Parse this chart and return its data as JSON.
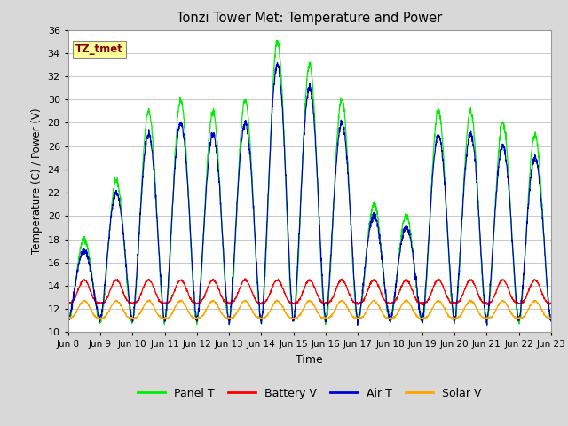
{
  "title": "Tonzi Tower Met: Temperature and Power",
  "xlabel": "Time",
  "ylabel": "Temperature (C) / Power (V)",
  "ylim": [
    10,
    36
  ],
  "yticks": [
    10,
    12,
    14,
    16,
    18,
    20,
    22,
    24,
    26,
    28,
    30,
    32,
    34,
    36
  ],
  "xtick_labels": [
    "Jun 8",
    "Jun 9",
    "Jun 10",
    "Jun 11",
    "Jun 12",
    "Jun 13",
    "Jun 14",
    "Jun 15",
    "Jun 16",
    "Jun 17",
    "Jun 18",
    "Jun 19",
    "Jun 20",
    "Jun 21",
    "Jun 22",
    "Jun 23"
  ],
  "annotation_text": "TZ_tmet",
  "annotation_box_color": "#FFFF99",
  "annotation_text_color": "#8B0000",
  "fig_bg_color": "#D8D8D8",
  "plot_bg_color": "#FFFFFF",
  "grid_color": "#C8C8C8",
  "line_colors": {
    "panel_t": "#00EE00",
    "battery_v": "#FF0000",
    "air_t": "#0000CC",
    "solar_v": "#FFA500"
  },
  "n_days": 15,
  "samples_per_day": 144,
  "amp_panel": [
    7,
    12,
    18,
    19,
    18,
    19,
    24,
    22,
    19,
    10,
    9,
    18,
    18,
    17,
    16
  ],
  "amp_air": [
    6,
    11,
    16,
    17,
    16,
    17,
    22,
    20,
    17,
    9,
    8,
    16,
    16,
    15,
    14
  ],
  "base_panel": 11.0,
  "base_air": 11.0,
  "base_battery": 12.5,
  "amp_battery": 2.0,
  "base_solar": 11.2,
  "amp_solar": 1.5
}
